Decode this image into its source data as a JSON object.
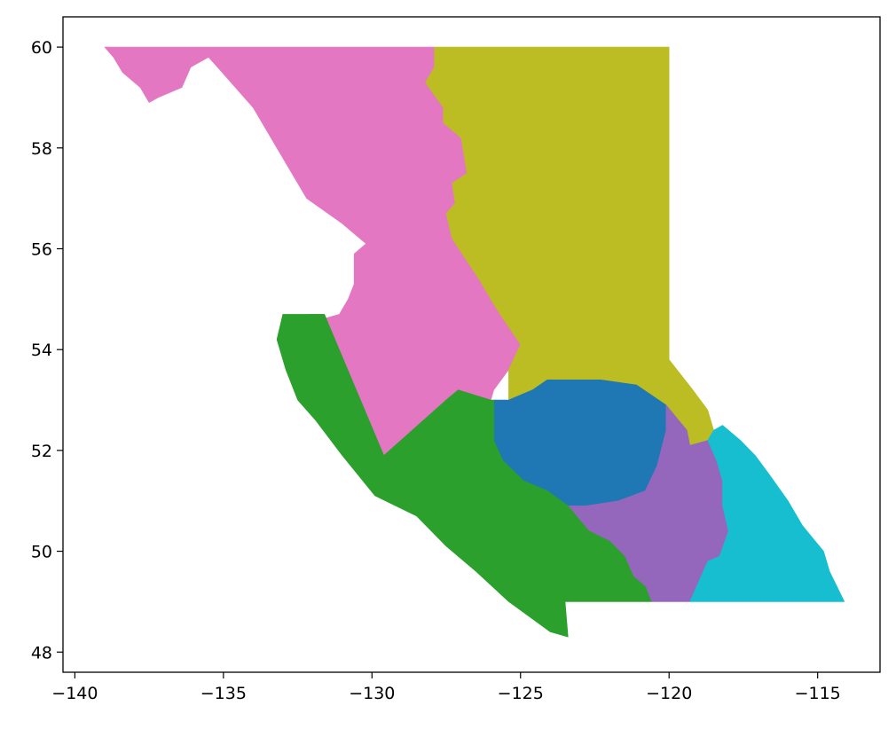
{
  "chart_data": {
    "type": "map",
    "title": "",
    "xlabel": "",
    "ylabel": "",
    "xlim": [
      -140.4,
      -112.9
    ],
    "ylim": [
      47.6,
      60.6
    ],
    "xticks": [
      {
        "value": -140,
        "label": "−140"
      },
      {
        "value": -135,
        "label": "−135"
      },
      {
        "value": -130,
        "label": "−130"
      },
      {
        "value": -125,
        "label": "−125"
      },
      {
        "value": -120,
        "label": "−120"
      },
      {
        "value": -115,
        "label": "−115"
      }
    ],
    "yticks": [
      {
        "value": 48,
        "label": "48"
      },
      {
        "value": 50,
        "label": "50"
      },
      {
        "value": 52,
        "label": "52"
      },
      {
        "value": 54,
        "label": "54"
      },
      {
        "value": 56,
        "label": "56"
      },
      {
        "value": 58,
        "label": "58"
      },
      {
        "value": 60,
        "label": "60"
      }
    ],
    "grid": false,
    "legend": "none",
    "regions": [
      {
        "color": "#e377c2",
        "polygon": [
          [
            -139.0,
            60.0
          ],
          [
            -127.9,
            60.0
          ],
          [
            -127.9,
            59.6
          ],
          [
            -128.2,
            59.3
          ],
          [
            -127.6,
            58.8
          ],
          [
            -127.6,
            58.5
          ],
          [
            -127.0,
            58.2
          ],
          [
            -126.8,
            57.5
          ],
          [
            -127.3,
            57.3
          ],
          [
            -127.2,
            56.9
          ],
          [
            -127.5,
            56.7
          ],
          [
            -127.3,
            56.2
          ],
          [
            -126.4,
            55.4
          ],
          [
            -125.8,
            54.8
          ],
          [
            -125.0,
            54.1
          ],
          [
            -125.4,
            53.6
          ],
          [
            -125.9,
            53.2
          ],
          [
            -126.0,
            53.0
          ],
          [
            -127.1,
            53.2
          ],
          [
            -127.5,
            53.0
          ],
          [
            -129.6,
            51.9
          ],
          [
            -131.6,
            54.7
          ],
          [
            -132.1,
            54.7
          ],
          [
            -131.9,
            54.7
          ],
          [
            -131.7,
            54.6
          ],
          [
            -131.1,
            54.7
          ],
          [
            -130.8,
            55.0
          ],
          [
            -130.6,
            55.3
          ],
          [
            -130.6,
            55.9
          ],
          [
            -130.2,
            56.1
          ],
          [
            -131.0,
            56.5
          ],
          [
            -132.2,
            57.0
          ],
          [
            -133.2,
            58.0
          ],
          [
            -134.0,
            58.8
          ],
          [
            -135.2,
            59.6
          ],
          [
            -135.5,
            59.8
          ],
          [
            -136.1,
            59.6
          ],
          [
            -136.4,
            59.2
          ],
          [
            -137.2,
            59.0
          ],
          [
            -137.5,
            58.9
          ],
          [
            -137.8,
            59.2
          ],
          [
            -138.4,
            59.5
          ],
          [
            -138.7,
            59.8
          ]
        ]
      },
      {
        "color": "#bcbd22",
        "polygon": [
          [
            -127.9,
            60.0
          ],
          [
            -120.0,
            60.0
          ],
          [
            -120.0,
            53.8
          ],
          [
            -119.6,
            53.5
          ],
          [
            -119.2,
            53.2
          ],
          [
            -118.7,
            52.8
          ],
          [
            -118.5,
            52.4
          ],
          [
            -118.7,
            52.2
          ],
          [
            -119.3,
            52.1
          ],
          [
            -119.4,
            52.4
          ],
          [
            -120.1,
            52.9
          ],
          [
            -121.1,
            53.3
          ],
          [
            -122.3,
            53.4
          ],
          [
            -123.2,
            53.4
          ],
          [
            -124.1,
            53.4
          ],
          [
            -124.6,
            53.2
          ],
          [
            -125.4,
            53.0
          ],
          [
            -125.4,
            53.6
          ],
          [
            -125.0,
            54.1
          ],
          [
            -125.8,
            54.8
          ],
          [
            -126.4,
            55.4
          ],
          [
            -127.3,
            56.2
          ],
          [
            -127.5,
            56.7
          ],
          [
            -127.2,
            56.9
          ],
          [
            -127.3,
            57.3
          ],
          [
            -126.8,
            57.5
          ],
          [
            -127.0,
            58.2
          ],
          [
            -127.6,
            58.5
          ],
          [
            -127.6,
            58.8
          ],
          [
            -128.2,
            59.3
          ],
          [
            -127.9,
            59.6
          ]
        ]
      },
      {
        "color": "#1f77b4",
        "polygon": [
          [
            -125.9,
            53.0
          ],
          [
            -125.4,
            53.0
          ],
          [
            -124.6,
            53.2
          ],
          [
            -124.1,
            53.4
          ],
          [
            -123.2,
            53.4
          ],
          [
            -122.3,
            53.4
          ],
          [
            -121.1,
            53.3
          ],
          [
            -120.1,
            52.9
          ],
          [
            -120.1,
            52.4
          ],
          [
            -120.4,
            51.7
          ],
          [
            -120.8,
            51.2
          ],
          [
            -121.7,
            51.0
          ],
          [
            -122.8,
            50.9
          ],
          [
            -123.4,
            50.9
          ],
          [
            -124.1,
            51.2
          ],
          [
            -124.9,
            51.4
          ],
          [
            -125.6,
            51.8
          ],
          [
            -125.9,
            52.2
          ]
        ]
      },
      {
        "color": "#9467bd",
        "polygon": [
          [
            -120.1,
            52.9
          ],
          [
            -119.4,
            52.4
          ],
          [
            -119.3,
            52.1
          ],
          [
            -118.7,
            52.2
          ],
          [
            -118.4,
            51.8
          ],
          [
            -118.2,
            51.4
          ],
          [
            -118.2,
            50.9
          ],
          [
            -118.0,
            50.4
          ],
          [
            -118.3,
            49.9
          ],
          [
            -118.7,
            49.8
          ],
          [
            -119.0,
            49.4
          ],
          [
            -119.3,
            49.0
          ],
          [
            -120.6,
            49.0
          ],
          [
            -120.8,
            49.3
          ],
          [
            -121.2,
            49.5
          ],
          [
            -121.5,
            49.9
          ],
          [
            -122.0,
            50.2
          ],
          [
            -122.7,
            50.4
          ],
          [
            -123.4,
            50.9
          ],
          [
            -122.8,
            50.9
          ],
          [
            -121.7,
            51.0
          ],
          [
            -120.8,
            51.2
          ],
          [
            -120.4,
            51.7
          ],
          [
            -120.1,
            52.4
          ]
        ]
      },
      {
        "color": "#17becf",
        "polygon": [
          [
            -118.5,
            52.4
          ],
          [
            -118.2,
            52.5
          ],
          [
            -117.6,
            52.2
          ],
          [
            -117.1,
            51.9
          ],
          [
            -116.6,
            51.5
          ],
          [
            -116.0,
            51.0
          ],
          [
            -115.5,
            50.5
          ],
          [
            -114.8,
            50.0
          ],
          [
            -114.6,
            49.6
          ],
          [
            -114.1,
            49.0
          ],
          [
            -119.3,
            49.0
          ],
          [
            -119.0,
            49.4
          ],
          [
            -118.7,
            49.8
          ],
          [
            -118.3,
            49.9
          ],
          [
            -118.0,
            50.4
          ],
          [
            -118.2,
            50.9
          ],
          [
            -118.2,
            51.4
          ],
          [
            -118.4,
            51.8
          ],
          [
            -118.7,
            52.2
          ]
        ]
      },
      {
        "color": "#2ca02c",
        "polygon": [
          [
            -131.6,
            54.7
          ],
          [
            -133.0,
            54.7
          ],
          [
            -133.2,
            54.2
          ],
          [
            -132.9,
            53.6
          ],
          [
            -132.5,
            53.0
          ],
          [
            -131.9,
            52.6
          ],
          [
            -131.0,
            51.9
          ],
          [
            -129.9,
            51.1
          ],
          [
            -128.5,
            50.7
          ],
          [
            -127.5,
            50.1
          ],
          [
            -126.5,
            49.6
          ],
          [
            -125.4,
            49.0
          ],
          [
            -124.0,
            48.4
          ],
          [
            -123.4,
            48.3
          ],
          [
            -123.5,
            49.0
          ],
          [
            -120.6,
            49.0
          ],
          [
            -120.8,
            49.3
          ],
          [
            -121.2,
            49.5
          ],
          [
            -121.5,
            49.9
          ],
          [
            -122.0,
            50.2
          ],
          [
            -122.7,
            50.4
          ],
          [
            -123.4,
            50.9
          ],
          [
            -124.1,
            51.2
          ],
          [
            -124.9,
            51.4
          ],
          [
            -125.6,
            51.8
          ],
          [
            -125.9,
            52.2
          ],
          [
            -125.9,
            53.0
          ],
          [
            -126.0,
            53.0
          ],
          [
            -127.1,
            53.2
          ],
          [
            -127.5,
            53.0
          ],
          [
            -129.6,
            51.9
          ]
        ]
      }
    ]
  }
}
